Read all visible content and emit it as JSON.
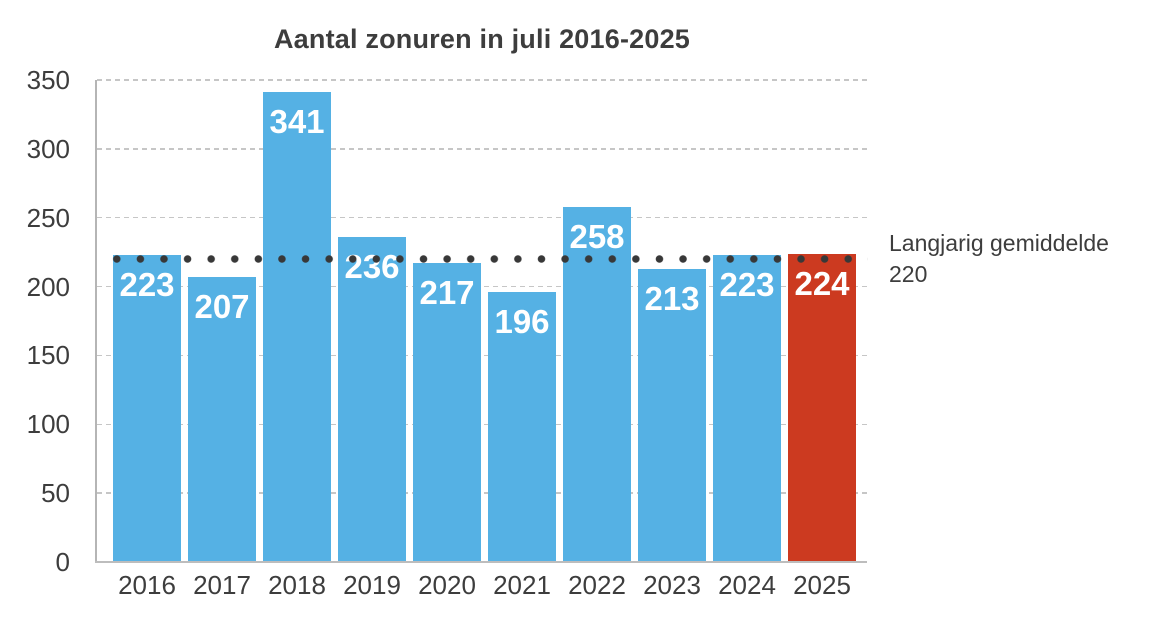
{
  "chart_data": {
    "type": "bar",
    "title": "Aantal zonuren in juli 2016-2025",
    "categories": [
      "2016",
      "2017",
      "2018",
      "2019",
      "2020",
      "2021",
      "2022",
      "2023",
      "2024",
      "2025"
    ],
    "values": [
      223,
      207,
      341,
      236,
      217,
      196,
      258,
      213,
      223,
      224
    ],
    "bar_color": "#55b1e4",
    "highlight_index": 9,
    "highlight_color": "#cc3a20",
    "value_label_color": "#ffffff",
    "ylim": [
      0,
      350
    ],
    "yticks": [
      0,
      50,
      100,
      150,
      200,
      250,
      300,
      350
    ],
    "grid": "horizontal-dashed",
    "legend": "none",
    "average_line": {
      "value": 220,
      "style": "dotted",
      "color": "#383838",
      "label": "Langjarig gemiddelde",
      "label_value": "220"
    }
  }
}
